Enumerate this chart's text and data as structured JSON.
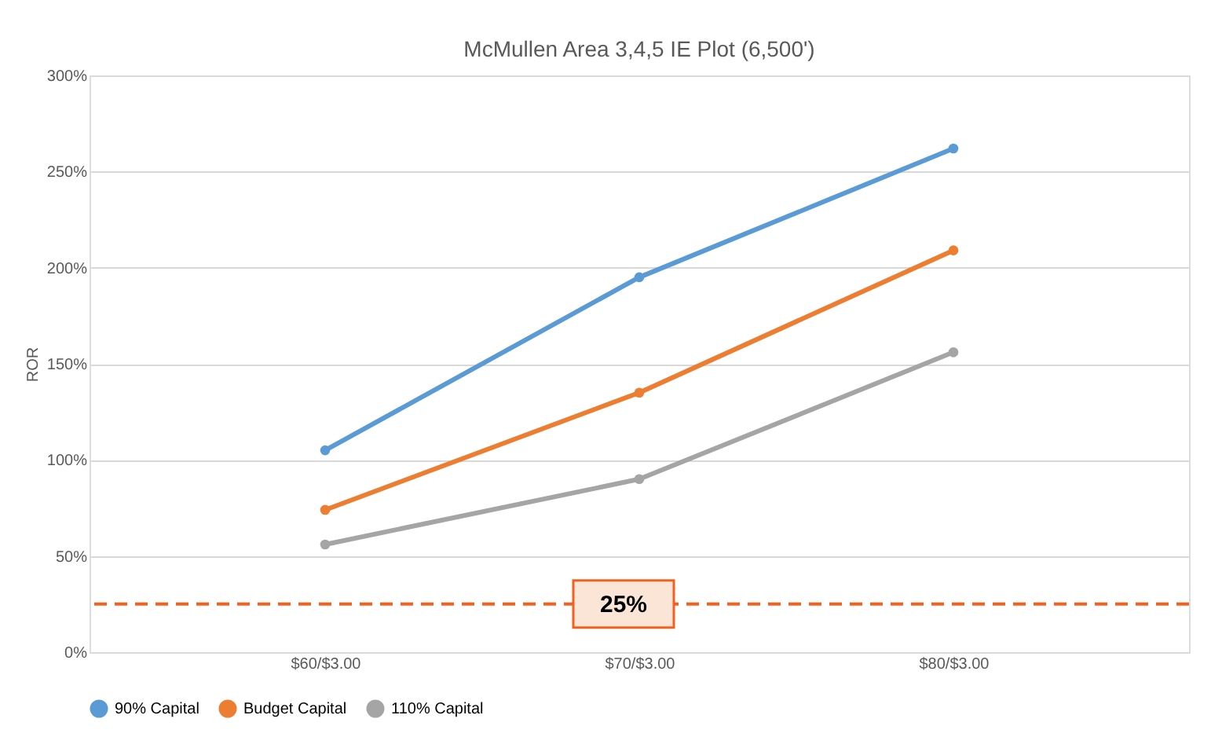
{
  "chart_data": {
    "type": "line",
    "title": "McMullen Area 3,4,5 IE Plot (6,500')",
    "ylabel": "ROR",
    "categories": [
      "$60/$3.00",
      "$70/$3.00",
      "$80/$3.00"
    ],
    "series": [
      {
        "name": "90% Capital",
        "color": "#5b9bd5",
        "values": [
          105,
          195,
          262
        ]
      },
      {
        "name": "Budget Capital",
        "color": "#ed7d31",
        "values": [
          74,
          135,
          209
        ]
      },
      {
        "name": "110% Capital",
        "color": "#a5a5a5",
        "values": [
          56,
          90,
          156
        ]
      }
    ],
    "ylim": [
      0,
      300
    ],
    "yticks": [
      {
        "value": 0,
        "label": "0%"
      },
      {
        "value": 50,
        "label": "50%"
      },
      {
        "value": 100,
        "label": "100%"
      },
      {
        "value": 150,
        "label": "150%"
      },
      {
        "value": 200,
        "label": "200%"
      },
      {
        "value": 250,
        "label": "250%"
      },
      {
        "value": 300,
        "label": "300%"
      }
    ],
    "ref_lines": [
      {
        "axis": "y",
        "value": 25,
        "label": "25%",
        "color": "#f4611f",
        "line_style": "dashed"
      }
    ],
    "grid": "y",
    "legend": "bottom",
    "marker": "circle",
    "line_style": "solid"
  }
}
